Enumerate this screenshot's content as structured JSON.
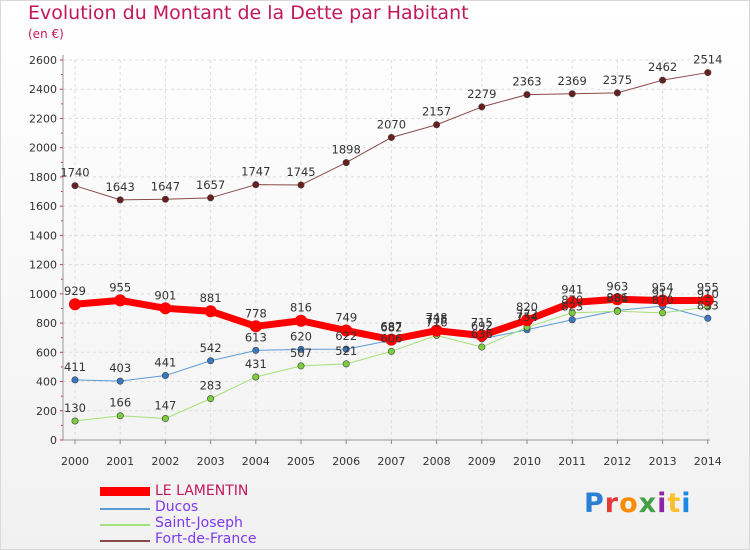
{
  "title": "Evolution du Montant de la Dette par Habitant",
  "subtitle": "(en €)",
  "logo": {
    "text": "Proxiti",
    "colors": [
      "#2a7fd4",
      "#e53935",
      "#fb8c00",
      "#43a047",
      "#8e24aa",
      "#fbc02d",
      "#1e88e5"
    ]
  },
  "chart_data": {
    "type": "line",
    "x": [
      "2000",
      "2001",
      "2002",
      "2003",
      "2004",
      "2005",
      "2006",
      "2007",
      "2008",
      "2009",
      "2010",
      "2011",
      "2012",
      "2013",
      "2014"
    ],
    "ylim": [
      0,
      2600
    ],
    "yticks": [
      "0",
      "200",
      "400",
      "600",
      "800",
      "1000",
      "1200",
      "1400",
      "1600",
      "1800",
      "2000",
      "2200",
      "2400",
      "2600"
    ],
    "grid": true,
    "legend_position": "bottom-left",
    "series": [
      {
        "name": "Fort-de-France",
        "color": "#8b4a4a",
        "point_color": "#6a1f1f",
        "width": 1,
        "values": [
          1740,
          1643,
          1647,
          1657,
          1747,
          1745,
          1898,
          2070,
          2157,
          2279,
          2363,
          2369,
          2375,
          2462,
          2514
        ],
        "labels": [
          "1740",
          "1643",
          "1647",
          "1657",
          "1747",
          "1745",
          "1898",
          "2070",
          "2157",
          "2279",
          "2363",
          "2369",
          "2375",
          "2462",
          "2514"
        ]
      },
      {
        "name": "Ducos",
        "color": "#5b9bd5",
        "point_color": "#3a78c0",
        "width": 1,
        "values": [
          411,
          403,
          441,
          542,
          613,
          620,
          622,
          682,
          735,
          692,
          754,
          823,
          886,
          917,
          833
        ],
        "labels": [
          "411",
          "403",
          "441",
          "542",
          "613",
          "620",
          "622",
          "682",
          "735",
          "692",
          "754",
          "823",
          "886",
          "917",
          "833"
        ]
      },
      {
        "name": "Saint-Joseph",
        "color": "#a6e07a",
        "point_color": "#7ccd3c",
        "width": 1,
        "values": [
          130,
          166,
          147,
          283,
          431,
          507,
          521,
          606,
          716,
          636,
          772,
          870,
          881,
          870,
          910
        ],
        "labels": [
          "130",
          "166",
          "147",
          "283",
          "431",
          "507",
          "521",
          "606",
          "716",
          "636",
          "772",
          "870",
          "881",
          "870",
          "910"
        ]
      },
      {
        "name": "LE LAMENTIN",
        "color": "#ff0000",
        "point_color": "#ff0000",
        "width": 7,
        "values": [
          929,
          955,
          901,
          881,
          778,
          816,
          749,
          687,
          748,
          715,
          820,
          941,
          963,
          954,
          955
        ],
        "labels": [
          "929",
          "955",
          "901",
          "881",
          "778",
          "816",
          "749",
          "687",
          "748",
          "715",
          "820",
          "941",
          "963",
          "954",
          "955"
        ]
      }
    ],
    "legend_order": [
      "LE LAMENTIN",
      "Ducos",
      "Saint-Joseph",
      "Fort-de-France"
    ]
  }
}
